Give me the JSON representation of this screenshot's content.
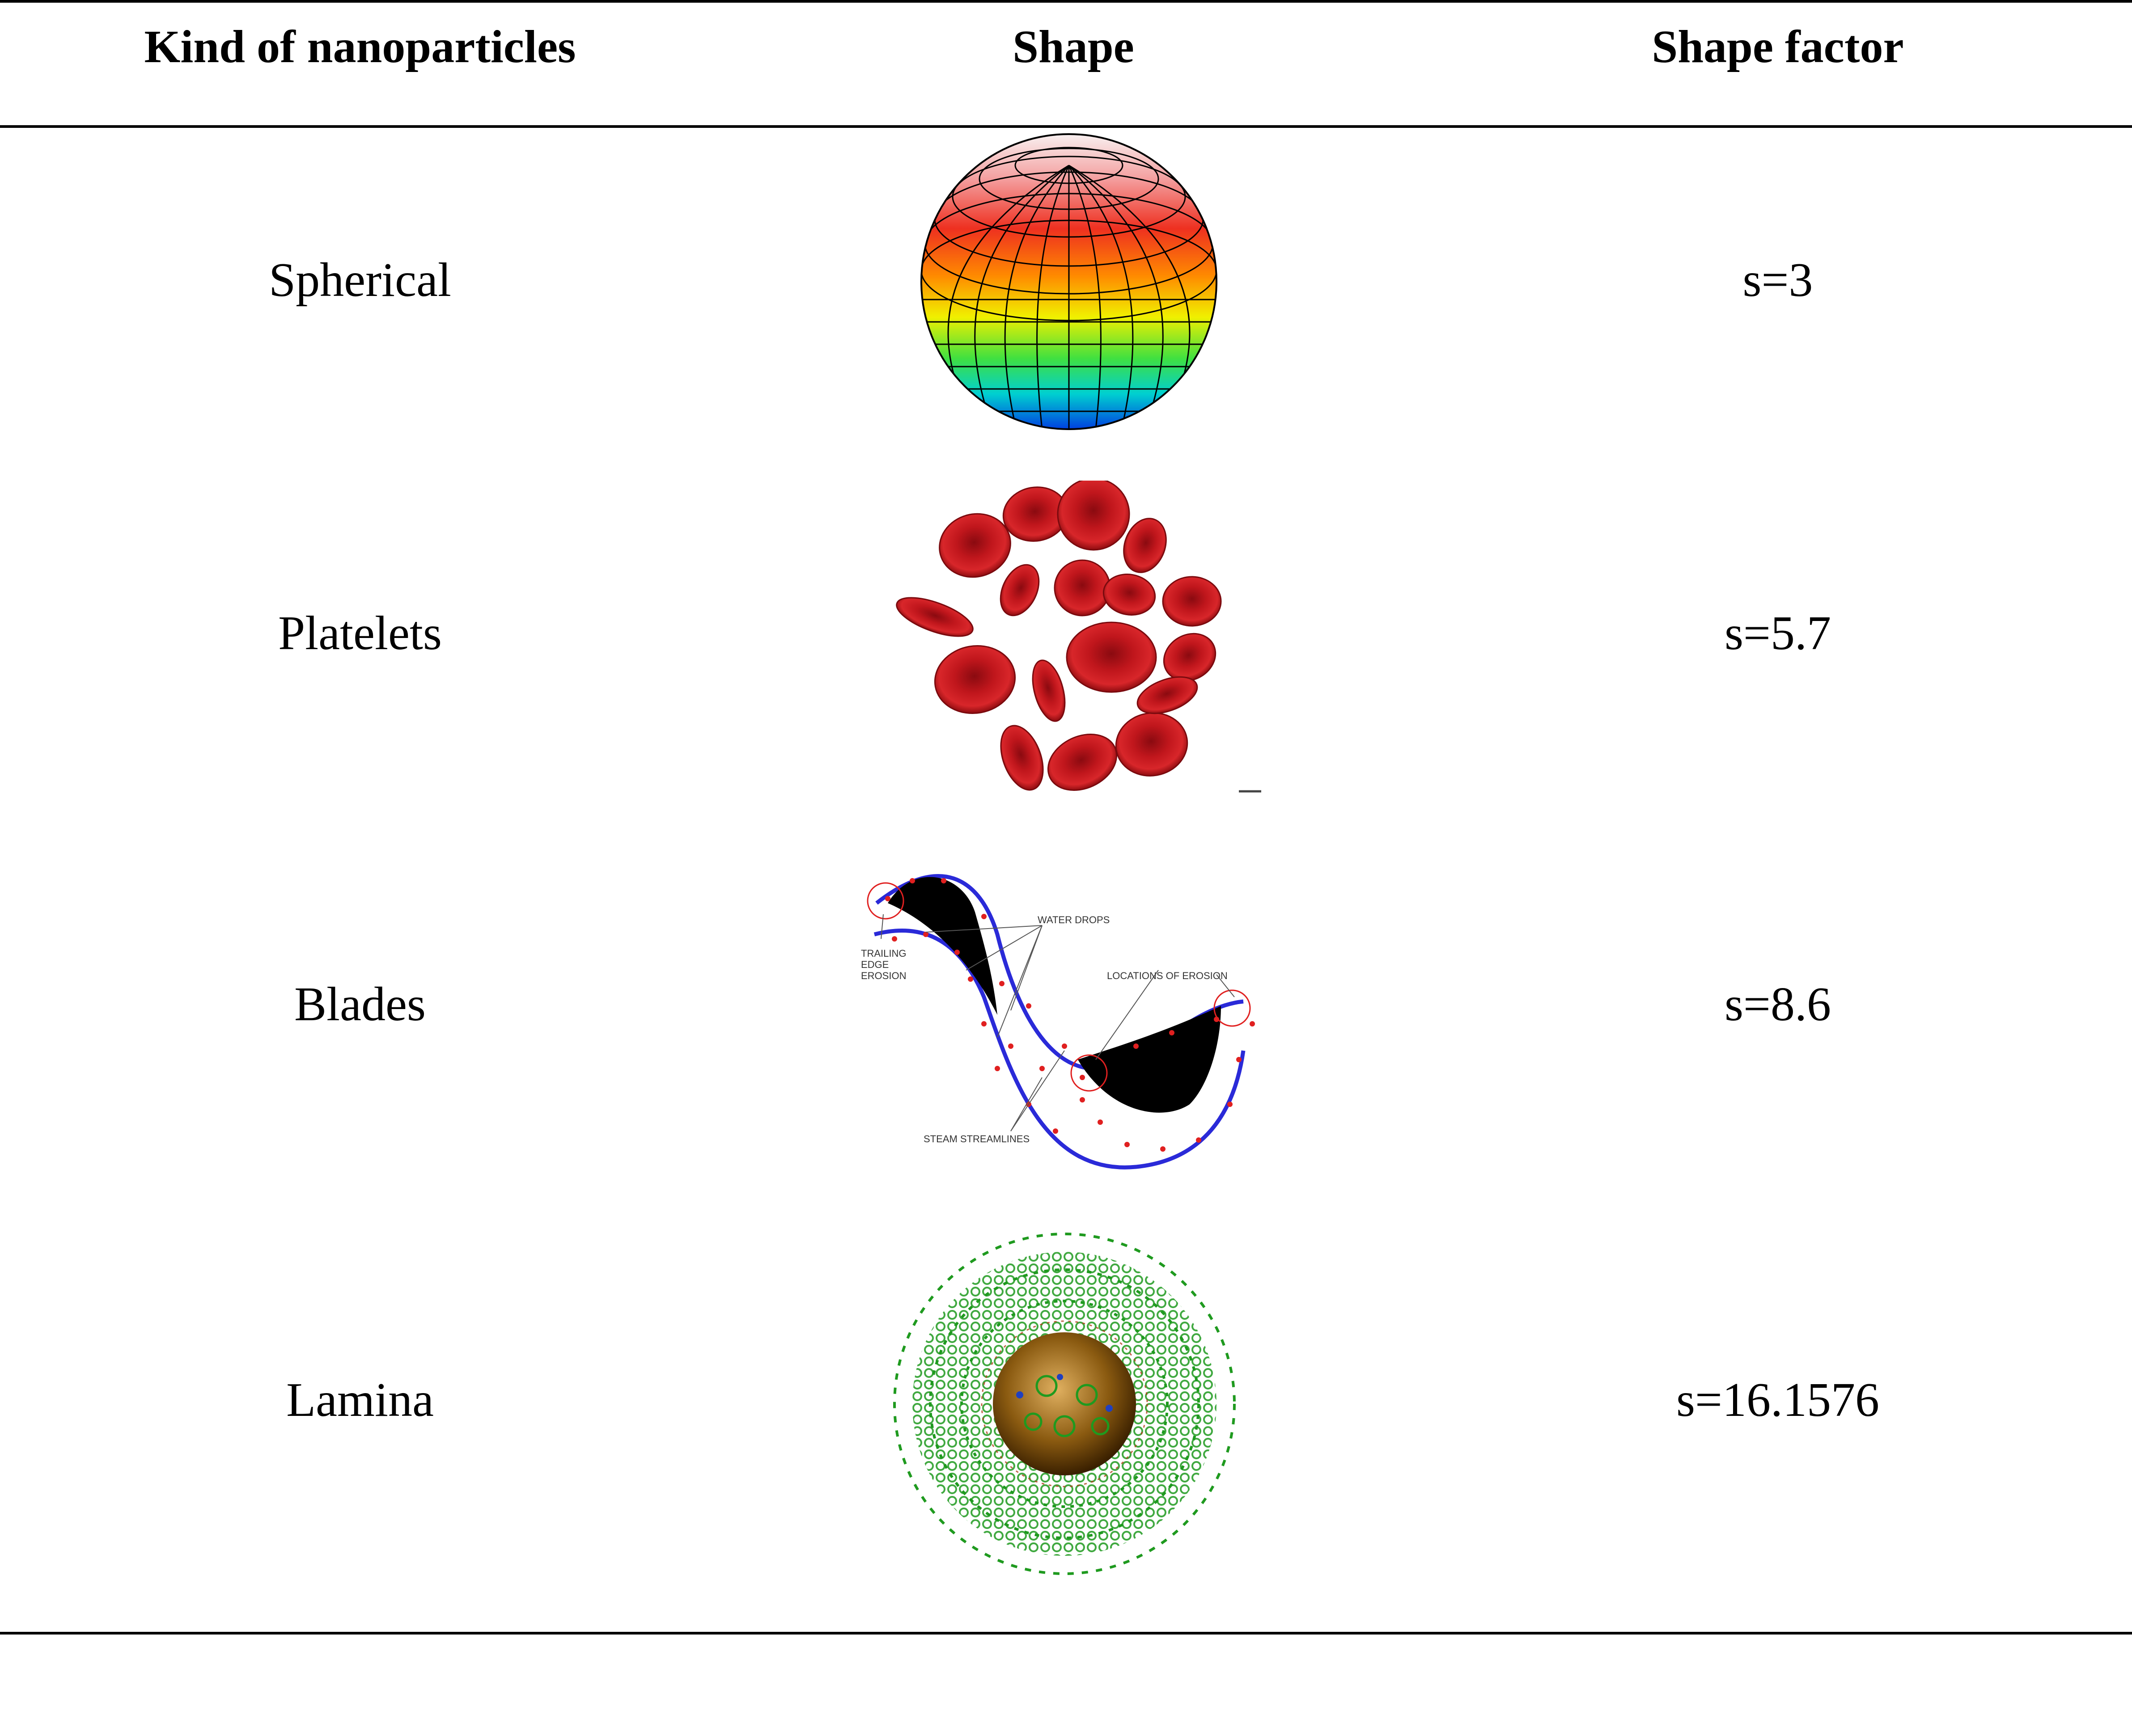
{
  "table": {
    "headers": [
      "Kind of nanoparticles",
      "Shape",
      "Shape factor"
    ],
    "rows": [
      {
        "kind": "Spherical",
        "shape_icon": "sphere-image",
        "factor": "s=3"
      },
      {
        "kind": "Platelets",
        "shape_icon": "platelets-image",
        "factor": "s=5.7"
      },
      {
        "kind": "Blades",
        "shape_icon": "turbine-blades-image",
        "factor": "s=8.6"
      },
      {
        "kind": "Lamina",
        "shape_icon": "lamina-nanoparticle-image",
        "factor": "s=16.1576"
      }
    ]
  },
  "blades_diagram": {
    "water_drops": "WATER DROPS",
    "trailing_1": "TRAILING",
    "trailing_2": "EDGE",
    "trailing_3": "EROSION",
    "locations": "LOCATIONS OF EROSION",
    "streamlines": "STEAM STREAMLINES"
  },
  "colors": {
    "platelet_red": "#c0161c",
    "blade_streamline": "#2a2ad8",
    "water_drop": "#e02020",
    "lamina_green": "#1f9a1f"
  }
}
